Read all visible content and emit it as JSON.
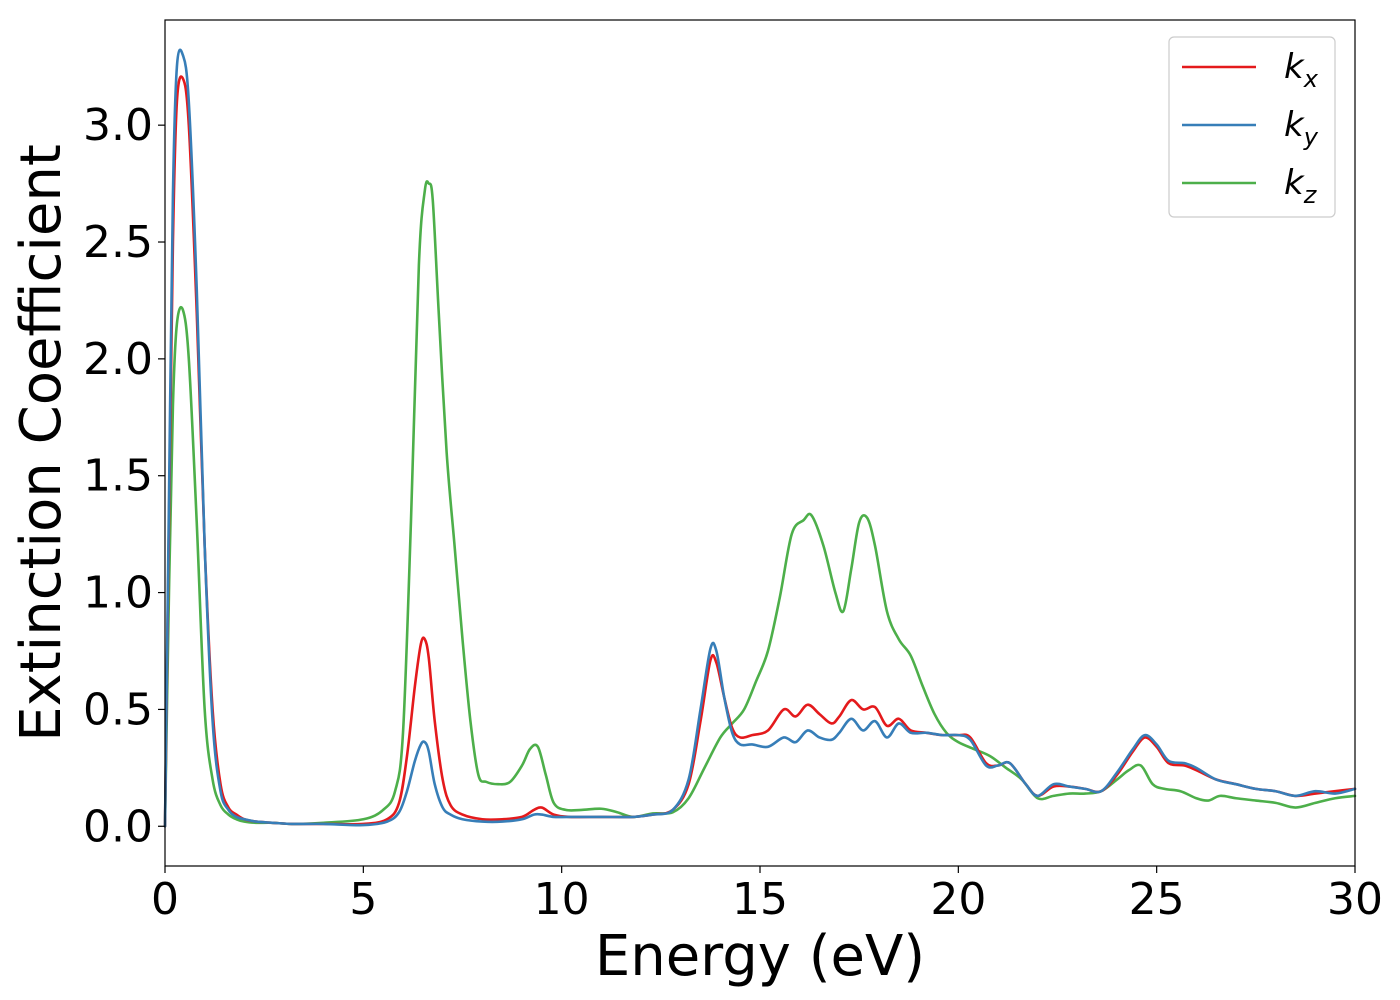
{
  "chart_data": {
    "type": "line",
    "xlabel": "Energy (eV)",
    "ylabel": "Extinction Coefficient",
    "xlim": [
      0,
      30
    ],
    "ylim": [
      -0.17,
      3.45
    ],
    "xticks": [
      0,
      5,
      10,
      15,
      20,
      25,
      30
    ],
    "xtick_labels": [
      "0",
      "5",
      "10",
      "15",
      "20",
      "25",
      "30"
    ],
    "yticks": [
      0.0,
      0.5,
      1.0,
      1.5,
      2.0,
      2.5,
      3.0
    ],
    "ytick_labels": [
      "0.0",
      "0.5",
      "1.0",
      "1.5",
      "2.0",
      "2.5",
      "3.0"
    ],
    "grid": false,
    "legend_position": "top-right",
    "series": [
      {
        "name": "k_x",
        "label_main": "k",
        "label_sub": "x",
        "color": "#e41a1c",
        "x": [
          0,
          0.1,
          0.2,
          0.3,
          0.45,
          0.6,
          0.8,
          1.0,
          1.2,
          1.4,
          1.6,
          1.8,
          2.0,
          2.3,
          2.7,
          3.2,
          4,
          5,
          5.6,
          5.9,
          6.1,
          6.3,
          6.45,
          6.55,
          6.65,
          6.8,
          7.0,
          7.2,
          7.5,
          8.0,
          8.5,
          9.0,
          9.3,
          9.5,
          9.8,
          10.2,
          11.0,
          11.8,
          12.3,
          12.8,
          13.2,
          13.5,
          13.75,
          13.9,
          14.1,
          14.3,
          14.5,
          14.8,
          15.2,
          15.6,
          15.9,
          16.2,
          16.5,
          16.8,
          17.0,
          17.3,
          17.6,
          17.9,
          18.2,
          18.5,
          18.8,
          19.2,
          19.6,
          20.0,
          20.3,
          20.7,
          21.0,
          21.3,
          21.7,
          22.0,
          22.4,
          22.8,
          23.2,
          23.6,
          24.0,
          24.4,
          24.7,
          25.0,
          25.3,
          25.7,
          26.0,
          26.5,
          27.0,
          27.5,
          28.0,
          28.5,
          29.0,
          29.5,
          30.0
        ],
        "values": [
          0.0,
          1.3,
          2.5,
          3.1,
          3.2,
          3.0,
          2.2,
          1.2,
          0.5,
          0.18,
          0.08,
          0.05,
          0.03,
          0.02,
          0.015,
          0.01,
          0.01,
          0.01,
          0.03,
          0.1,
          0.3,
          0.6,
          0.78,
          0.8,
          0.72,
          0.45,
          0.2,
          0.09,
          0.05,
          0.03,
          0.03,
          0.04,
          0.07,
          0.08,
          0.05,
          0.04,
          0.04,
          0.04,
          0.05,
          0.07,
          0.18,
          0.45,
          0.71,
          0.7,
          0.55,
          0.42,
          0.38,
          0.39,
          0.41,
          0.5,
          0.47,
          0.52,
          0.48,
          0.44,
          0.47,
          0.54,
          0.5,
          0.51,
          0.43,
          0.46,
          0.41,
          0.4,
          0.39,
          0.39,
          0.38,
          0.27,
          0.26,
          0.27,
          0.18,
          0.13,
          0.17,
          0.17,
          0.16,
          0.15,
          0.22,
          0.32,
          0.38,
          0.34,
          0.27,
          0.26,
          0.24,
          0.2,
          0.18,
          0.16,
          0.15,
          0.13,
          0.14,
          0.15,
          0.16
        ]
      },
      {
        "name": "k_y",
        "label_main": "k",
        "label_sub": "y",
        "color": "#377eb8",
        "x": [
          0,
          0.1,
          0.2,
          0.3,
          0.45,
          0.6,
          0.8,
          1.0,
          1.2,
          1.4,
          1.6,
          1.8,
          2.0,
          2.3,
          2.7,
          3.2,
          4,
          5,
          5.6,
          5.9,
          6.1,
          6.3,
          6.45,
          6.55,
          6.65,
          6.8,
          7.0,
          7.2,
          7.5,
          8.0,
          8.5,
          9.0,
          9.3,
          9.5,
          9.8,
          10.2,
          11.0,
          11.8,
          12.3,
          12.8,
          13.2,
          13.5,
          13.75,
          13.9,
          14.1,
          14.3,
          14.5,
          14.8,
          15.2,
          15.6,
          15.9,
          16.2,
          16.5,
          16.8,
          17.0,
          17.3,
          17.6,
          17.9,
          18.2,
          18.5,
          18.8,
          19.2,
          19.6,
          20.0,
          20.3,
          20.7,
          21.0,
          21.3,
          21.7,
          22.0,
          22.4,
          22.8,
          23.2,
          23.6,
          24.0,
          24.4,
          24.7,
          25.0,
          25.3,
          25.7,
          26.0,
          26.5,
          27.0,
          27.5,
          28.0,
          28.5,
          29.0,
          29.5,
          30.0
        ],
        "values": [
          0.0,
          1.4,
          2.7,
          3.25,
          3.3,
          3.1,
          2.3,
          1.2,
          0.45,
          0.15,
          0.07,
          0.04,
          0.03,
          0.02,
          0.015,
          0.01,
          0.01,
          0.005,
          0.02,
          0.06,
          0.15,
          0.28,
          0.35,
          0.36,
          0.32,
          0.18,
          0.08,
          0.05,
          0.03,
          0.02,
          0.02,
          0.03,
          0.05,
          0.05,
          0.04,
          0.04,
          0.04,
          0.04,
          0.05,
          0.07,
          0.2,
          0.5,
          0.76,
          0.75,
          0.55,
          0.4,
          0.35,
          0.35,
          0.34,
          0.38,
          0.36,
          0.41,
          0.38,
          0.37,
          0.4,
          0.46,
          0.41,
          0.45,
          0.38,
          0.44,
          0.4,
          0.4,
          0.39,
          0.39,
          0.37,
          0.26,
          0.26,
          0.27,
          0.18,
          0.13,
          0.18,
          0.17,
          0.16,
          0.15,
          0.23,
          0.33,
          0.39,
          0.35,
          0.28,
          0.27,
          0.25,
          0.2,
          0.18,
          0.16,
          0.15,
          0.13,
          0.15,
          0.14,
          0.16
        ]
      },
      {
        "name": "k_z",
        "label_main": "k",
        "label_sub": "z",
        "color": "#4daf4a",
        "x": [
          0,
          0.1,
          0.2,
          0.3,
          0.45,
          0.6,
          0.8,
          1.0,
          1.2,
          1.4,
          1.6,
          1.8,
          2.0,
          2.3,
          2.7,
          3.2,
          4,
          5,
          5.5,
          5.8,
          6.0,
          6.2,
          6.4,
          6.55,
          6.65,
          6.75,
          6.9,
          7.1,
          7.3,
          7.5,
          7.7,
          7.9,
          8.1,
          8.4,
          8.7,
          9.0,
          9.2,
          9.4,
          9.6,
          9.8,
          10.1,
          10.5,
          11.0,
          11.4,
          11.8,
          12.3,
          12.8,
          13.2,
          13.6,
          14.0,
          14.3,
          14.6,
          14.9,
          15.2,
          15.5,
          15.8,
          16.1,
          16.3,
          16.6,
          16.9,
          17.1,
          17.3,
          17.5,
          17.7,
          17.9,
          18.2,
          18.5,
          18.8,
          19.1,
          19.4,
          19.7,
          20.0,
          20.4,
          20.8,
          21.2,
          21.6,
          22.0,
          22.4,
          22.8,
          23.2,
          23.6,
          24.0,
          24.3,
          24.6,
          24.9,
          25.2,
          25.6,
          26.0,
          26.3,
          26.6,
          27.0,
          27.5,
          28.0,
          28.5,
          29.0,
          29.5,
          30.0
        ],
        "values": [
          0.0,
          1.0,
          1.8,
          2.15,
          2.21,
          2.0,
          1.3,
          0.5,
          0.2,
          0.09,
          0.05,
          0.03,
          0.02,
          0.015,
          0.015,
          0.01,
          0.015,
          0.03,
          0.07,
          0.15,
          0.4,
          1.3,
          2.4,
          2.72,
          2.75,
          2.68,
          2.2,
          1.6,
          1.2,
          0.8,
          0.45,
          0.22,
          0.19,
          0.18,
          0.19,
          0.26,
          0.33,
          0.34,
          0.22,
          0.1,
          0.07,
          0.07,
          0.075,
          0.06,
          0.04,
          0.055,
          0.06,
          0.12,
          0.25,
          0.38,
          0.44,
          0.5,
          0.62,
          0.75,
          0.98,
          1.25,
          1.31,
          1.33,
          1.2,
          1.0,
          0.92,
          1.1,
          1.3,
          1.32,
          1.2,
          0.92,
          0.8,
          0.73,
          0.6,
          0.48,
          0.4,
          0.36,
          0.33,
          0.3,
          0.25,
          0.2,
          0.12,
          0.13,
          0.14,
          0.14,
          0.15,
          0.2,
          0.24,
          0.26,
          0.18,
          0.16,
          0.15,
          0.12,
          0.11,
          0.13,
          0.12,
          0.11,
          0.1,
          0.08,
          0.1,
          0.12,
          0.13
        ]
      }
    ]
  }
}
